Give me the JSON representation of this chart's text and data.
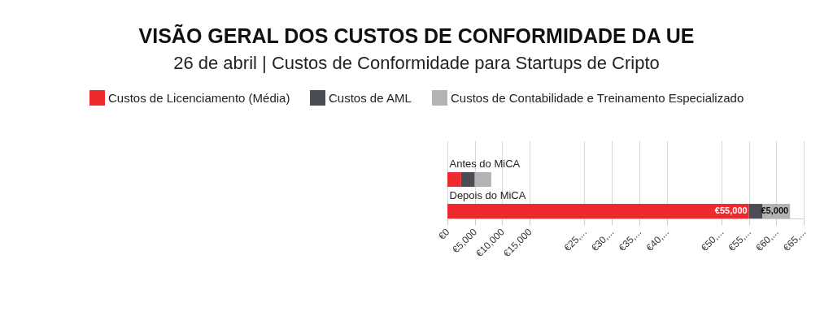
{
  "chart_data": {
    "type": "bar",
    "orientation": "horizontal",
    "stacked": true,
    "title": "VISÃO GERAL DOS CUSTOS DE CONFORMIDADE DA UE",
    "subtitle": "26 de abril | Custos de Conformidade para Startups de Cripto",
    "categories": [
      "Antes do MiCA",
      "Depois do MiCA"
    ],
    "series": [
      {
        "name": "Custos de Licenciamento (Média)",
        "color": "#ee2a2f",
        "values": [
          2500,
          55000
        ],
        "value_labels": [
          null,
          "€55,000"
        ]
      },
      {
        "name": "Custos de AML",
        "color": "#4a4e54",
        "values": [
          2500,
          2500
        ]
      },
      {
        "name": "Custos de Contabilidade e Treinamento Especializado",
        "color": "#b3b3b6",
        "values": [
          3000,
          5000
        ],
        "value_labels": [
          null,
          "€5,000"
        ]
      }
    ],
    "xlim": [
      0,
      65000
    ],
    "xticks": [
      {
        "value": 0,
        "label": "€0"
      },
      {
        "value": 5000,
        "label": "€5,000"
      },
      {
        "value": 10000,
        "label": "€10,000"
      },
      {
        "value": 15000,
        "label": "€15,000"
      },
      {
        "value": 25000,
        "label": "€25,..."
      },
      {
        "value": 30000,
        "label": "€30,..."
      },
      {
        "value": 35000,
        "label": "€35,..."
      },
      {
        "value": 40000,
        "label": "€40,..."
      },
      {
        "value": 50000,
        "label": "€50,..."
      },
      {
        "value": 55000,
        "label": "€55,..."
      },
      {
        "value": 60000,
        "label": "€60,..."
      },
      {
        "value": 65000,
        "label": "€65,..."
      }
    ],
    "grid": "x",
    "legend": "top"
  }
}
